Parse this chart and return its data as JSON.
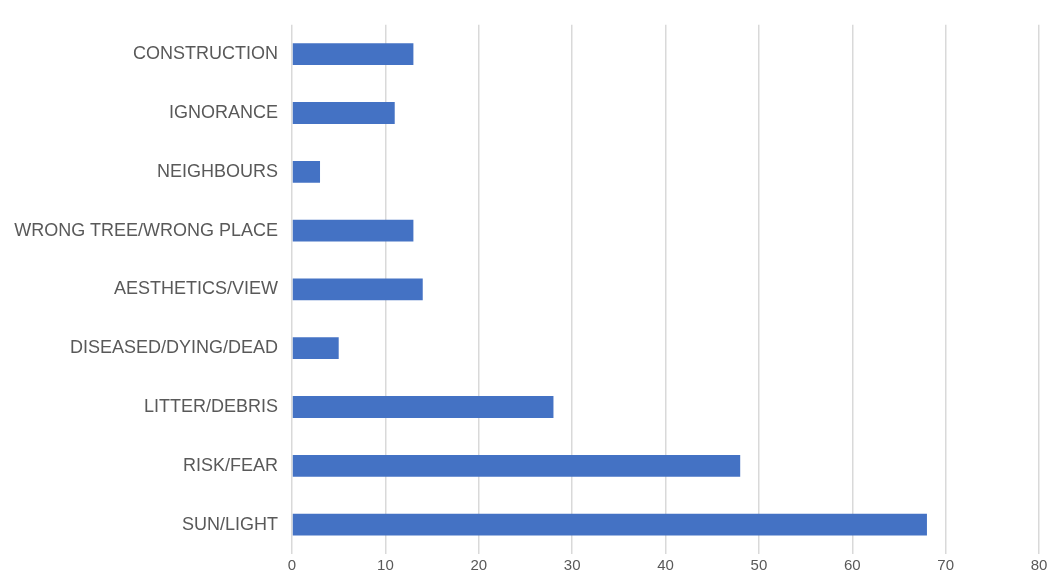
{
  "chart_data": {
    "type": "bar",
    "orientation": "horizontal",
    "categories": [
      "CONSTRUCTION",
      "IGNORANCE",
      "NEIGHBOURS",
      "WRONG TREE/WRONG PLACE",
      "AESTHETICS/VIEW",
      "DISEASED/DYING/DEAD",
      "LITTER/DEBRIS",
      "RISK/FEAR",
      "SUN/LIGHT"
    ],
    "values": [
      13,
      11,
      3,
      13,
      14,
      5,
      28,
      48,
      68
    ],
    "color": "#4472c4",
    "xlim": [
      0,
      80
    ],
    "xticks": [
      0,
      10,
      20,
      30,
      40,
      50,
      60,
      70,
      80
    ],
    "grid": "x",
    "legend": false
  }
}
